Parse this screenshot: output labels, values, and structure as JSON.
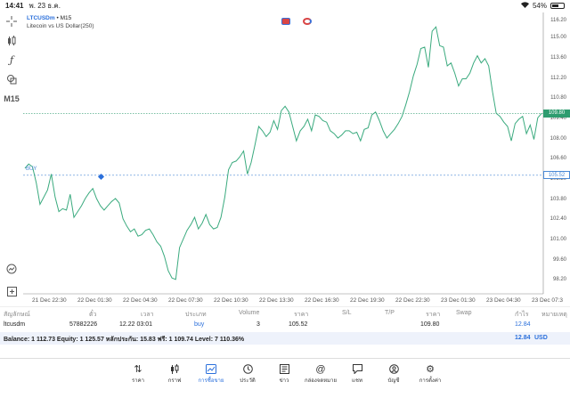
{
  "statusbar": {
    "time": "14:41",
    "date": "พ. 23 ธ.ค.",
    "battery": "54%"
  },
  "toolbar": {
    "timeframe": "M15"
  },
  "chart": {
    "symbol": "LTCUSDm",
    "separator": "•",
    "period": "M15",
    "description": "Litecoin vs US Dollar(250)",
    "current_price": "109.80",
    "buy_price": "105.52",
    "buy_label": "BUY",
    "y_ticks": [
      "116.20",
      "115.00",
      "113.60",
      "112.20",
      "110.80",
      "109.40",
      "108.00",
      "106.60",
      "105.20",
      "103.80",
      "102.40",
      "101.00",
      "99.60",
      "98.20"
    ],
    "x_ticks": [
      "21 Dec 22:30",
      "22 Dec 01:30",
      "22 Dec 04:30",
      "22 Dec 07:30",
      "22 Dec 10:30",
      "22 Dec 13:30",
      "22 Dec 16:30",
      "22 Dec 19:30",
      "22 Dec 22:30",
      "23 Dec 01:30",
      "23 Dec 04:30",
      "23 Dec 07:3"
    ],
    "colors": {
      "line": "#3aaa7e",
      "current": "#2e9c6f",
      "buy": "#4b8ad6"
    }
  },
  "chart_data": {
    "type": "line",
    "title": "",
    "xlabel": "",
    "ylabel": "",
    "ylim": [
      97.3,
      116.8
    ],
    "series": [
      {
        "values": [
          106.0,
          106.3,
          106.1,
          105.0,
          103.5,
          104.0,
          104.5,
          105.6,
          104.0,
          103.0,
          103.2,
          103.1,
          104.2,
          102.6,
          103.0,
          103.4,
          103.9,
          104.3,
          104.6,
          103.9,
          103.4,
          103.1,
          103.4,
          103.7,
          103.9,
          103.6,
          102.5,
          102.0,
          101.6,
          101.8,
          101.3,
          101.4,
          101.7,
          101.8,
          101.4,
          100.9,
          100.6,
          99.9,
          98.9,
          98.4,
          98.3,
          100.5,
          101.1,
          101.7,
          102.1,
          102.6,
          101.8,
          102.2,
          102.8,
          102.1,
          101.8,
          101.9,
          102.6,
          104.0,
          105.9,
          106.4,
          106.5,
          106.8,
          107.2,
          105.6,
          106.4,
          107.6,
          108.9,
          108.6,
          108.2,
          108.5,
          109.3,
          108.7,
          110.0,
          110.3,
          109.9,
          108.9,
          107.9,
          108.6,
          108.9,
          109.4,
          108.6,
          109.7,
          109.6,
          109.3,
          109.2,
          108.6,
          108.4,
          108.1,
          108.3,
          108.6,
          108.6,
          108.4,
          108.5,
          107.9,
          108.7,
          108.8,
          109.7,
          109.9,
          109.3,
          108.6,
          108.1,
          108.4,
          108.7,
          109.1,
          109.6,
          110.4,
          111.3,
          112.4,
          113.2,
          114.3,
          114.4,
          113.0,
          115.5,
          115.8,
          114.5,
          114.4,
          113.1,
          113.3,
          112.6,
          111.7,
          112.2,
          112.2,
          112.6,
          113.3,
          113.8,
          113.3,
          113.6,
          113.1,
          111.3,
          109.8,
          109.6,
          109.2,
          108.9,
          107.9,
          109.1,
          109.4,
          109.6,
          108.4,
          109.0,
          108.0,
          109.5,
          109.8
        ]
      }
    ]
  },
  "positions": {
    "headers": [
      "สัญลักษณ์",
      "ตั๋ว",
      "เวลา",
      "ประเภท",
      "Volume",
      "ราคา",
      "S/L",
      "T/P",
      "ราคา",
      "Swap",
      "กำไร",
      "หมายเหตุ"
    ],
    "row": {
      "symbol": "ltcusdm",
      "ticket": "57882226",
      "time": "12.22 03:01",
      "type": "buy",
      "volume": "3",
      "open_price": "105.52",
      "price": "109.80",
      "profit": "12.84"
    },
    "balance_text": "Balance: 1 112.73 Equity: 1 125.57 หลักประกัน: 15.83 ฟรี: 1 109.74 Level: 7 110.36%",
    "total_profit": "12.84",
    "currency": "USD"
  },
  "tabs": [
    {
      "label": "ราคา",
      "icon": "sort-arrows-icon"
    },
    {
      "label": "กราฟ",
      "icon": "candles-icon"
    },
    {
      "label": "การซื้อขาย",
      "icon": "trade-chart-icon"
    },
    {
      "label": "ประวัติ",
      "icon": "history-clock-icon"
    },
    {
      "label": "ข่าว",
      "icon": "news-icon"
    },
    {
      "label": "กล่องจดหมาย",
      "icon": "at-icon"
    },
    {
      "label": "แชท",
      "icon": "chat-icon"
    },
    {
      "label": "บัญชี",
      "icon": "account-icon"
    },
    {
      "label": "การตั้งค่า",
      "icon": "gear-icon"
    }
  ]
}
